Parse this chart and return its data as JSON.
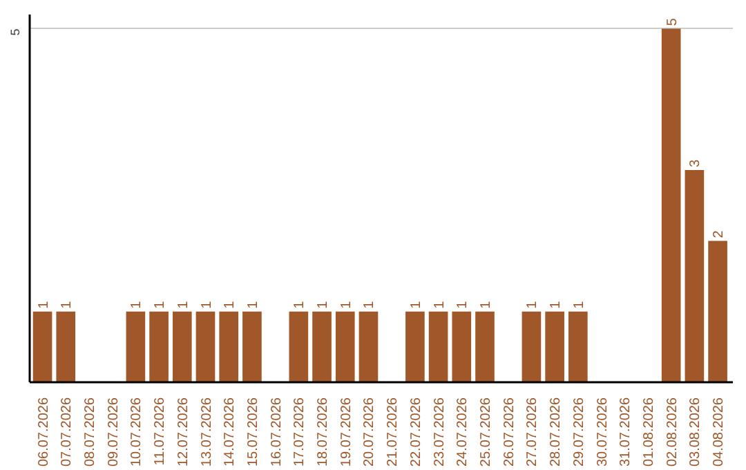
{
  "chart_data": {
    "type": "bar",
    "categories": [
      "06.07.2026",
      "07.07.2026",
      "08.07.2026",
      "09.07.2026",
      "10.07.2026",
      "11.07.2026",
      "12.07.2026",
      "13.07.2026",
      "14.07.2026",
      "15.07.2026",
      "16.07.2026",
      "17.07.2026",
      "18.07.2026",
      "19.07.2026",
      "20.07.2026",
      "21.07.2026",
      "22.07.2026",
      "23.07.2026",
      "24.07.2026",
      "25.07.2026",
      "26.07.2026",
      "27.07.2026",
      "28.07.2026",
      "29.07.2026",
      "30.07.2026",
      "31.07.2026",
      "01.08.2026",
      "02.08.2026",
      "03.08.2026",
      "04.08.2026"
    ],
    "values": [
      1,
      1,
      0,
      0,
      1,
      1,
      1,
      1,
      1,
      1,
      0,
      1,
      1,
      1,
      1,
      0,
      1,
      1,
      1,
      1,
      0,
      1,
      1,
      1,
      0,
      0,
      0,
      5,
      3,
      2
    ],
    "value_labels": [
      "1",
      "1",
      null,
      null,
      "1",
      "1",
      "1",
      "1",
      "1",
      "1",
      null,
      "1",
      "1",
      "1",
      "1",
      null,
      "1",
      "1",
      "1",
      "1",
      null,
      "1",
      "1",
      "1",
      null,
      null,
      null,
      "5",
      "3",
      "2"
    ],
    "color": "#a0572a",
    "ylim": [
      0,
      5.2
    ],
    "yticks": [
      5
    ],
    "grid": "y"
  }
}
